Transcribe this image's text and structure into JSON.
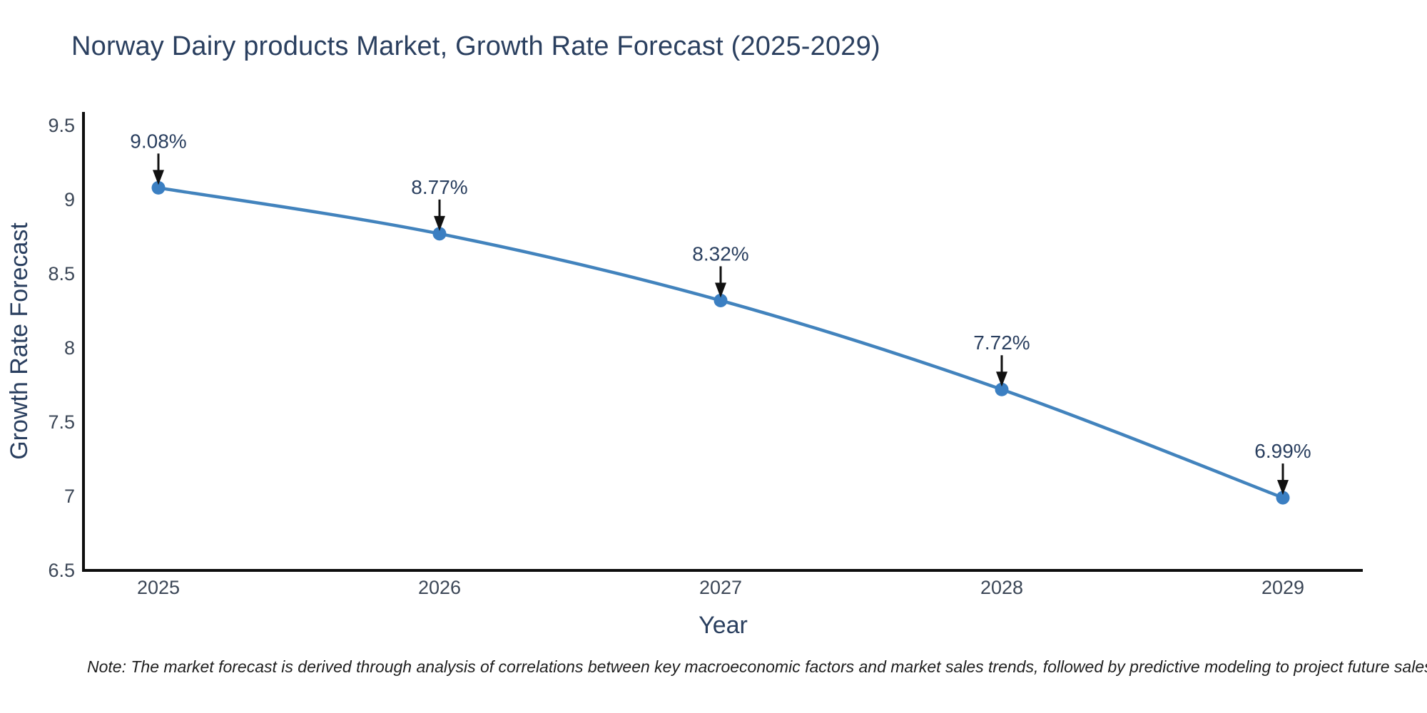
{
  "title": "Norway Dairy products Market, Growth Rate Forecast (2025-2029)",
  "note": "Note: The market forecast is derived through analysis of correlations between key macroeconomic factors and market sales trends, followed by predictive modeling to project future sales",
  "chart_data": {
    "type": "line",
    "title": "Norway Dairy products Market, Growth Rate Forecast (2025-2029)",
    "x": [
      2025,
      2026,
      2027,
      2028,
      2029
    ],
    "xtick_labels": [
      "2025",
      "2026",
      "2027",
      "2028",
      "2029"
    ],
    "series": [
      {
        "name": "Growth Rate Forecast",
        "values": [
          9.08,
          8.77,
          8.32,
          7.72,
          6.99
        ]
      }
    ],
    "point_labels": [
      "9.08%",
      "8.77%",
      "8.32%",
      "7.72%",
      "6.99%"
    ],
    "xlabel": "Year",
    "ylabel": "Growth Rate Forecast",
    "ylim": [
      6.5,
      9.6
    ],
    "yticks": [
      6.5,
      7,
      7.5,
      8,
      8.5,
      9,
      9.5
    ],
    "ytick_labels": [
      "6.5",
      "7",
      "7.5",
      "8",
      "8.5",
      "9",
      "9.5"
    ],
    "grid": false,
    "legend": false,
    "line_shape": "spline",
    "line_color": "#4283bd",
    "marker_color": "#3b7fc2",
    "arrow_color": "#111111"
  },
  "colors": {
    "title": "#2a3f5f",
    "tick": "#3b4656",
    "axis_title": "#2a3f5f",
    "annotation": "#2a3f5f",
    "axis_line": "#0d0d0d",
    "note": "#1f1f1f"
  }
}
